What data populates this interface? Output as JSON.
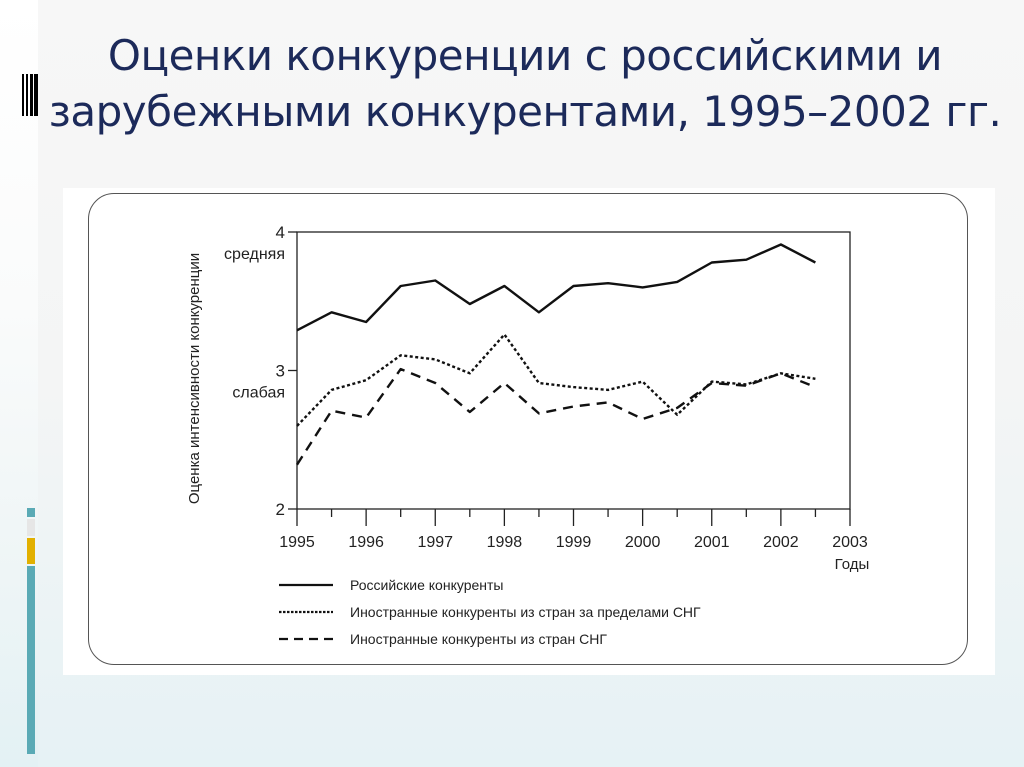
{
  "slide": {
    "title_line1": "Оценки конкуренции с российскими и",
    "title_line2": "зарубежными конкурентами, 1995–2002 гг.",
    "title_color": "#1c2a5a",
    "accent_colors": [
      "#5aaab5",
      "#e6e6e6",
      "#e2b000",
      "#5aaab5"
    ]
  },
  "chart_data": {
    "type": "line",
    "title": "Оценки конкуренции с российскими и зарубежными конкурентами, 1995–2002 гг.",
    "xlabel": "Годы",
    "ylabel": "Оценка интенсивности конкуренции",
    "x_ticks": [
      "1995",
      "1996",
      "1997",
      "1998",
      "1999",
      "2000",
      "2001",
      "2002",
      "2003"
    ],
    "y_ticks": [
      "2",
      "3",
      "4"
    ],
    "y_tick_annotations": [
      {
        "y": 4,
        "label": "средняя"
      },
      {
        "y": 3,
        "label": "слабая"
      }
    ],
    "ylim": [
      2,
      4
    ],
    "xlim": [
      1995,
      2003
    ],
    "grid": false,
    "legend_position": "bottom",
    "x": [
      1995,
      1995.5,
      1996,
      1996.5,
      1997,
      1997.5,
      1998,
      1998.5,
      1999,
      1999.5,
      2000,
      2000.5,
      2001,
      2001.5,
      2002,
      2002.5
    ],
    "series": [
      {
        "name": "Российские конкуренты",
        "style": "solid",
        "values": [
          3.29,
          3.42,
          3.35,
          3.61,
          3.65,
          3.48,
          3.61,
          3.42,
          3.61,
          3.63,
          3.6,
          3.64,
          3.78,
          3.8,
          3.91,
          3.78
        ]
      },
      {
        "name": "Иностранные конкуренты из стран за пределами СНГ",
        "style": "dotted",
        "values": [
          2.6,
          2.86,
          2.93,
          3.11,
          3.08,
          2.98,
          3.26,
          2.91,
          2.88,
          2.86,
          2.92,
          2.68,
          2.92,
          2.9,
          2.98,
          2.94
        ]
      },
      {
        "name": "Иностранные конкуренты из стран СНГ",
        "style": "dashed",
        "values": [
          2.32,
          2.71,
          2.66,
          3.01,
          2.91,
          2.7,
          2.91,
          2.69,
          2.74,
          2.77,
          2.65,
          2.73,
          2.91,
          2.89,
          2.98,
          2.88
        ]
      }
    ]
  }
}
